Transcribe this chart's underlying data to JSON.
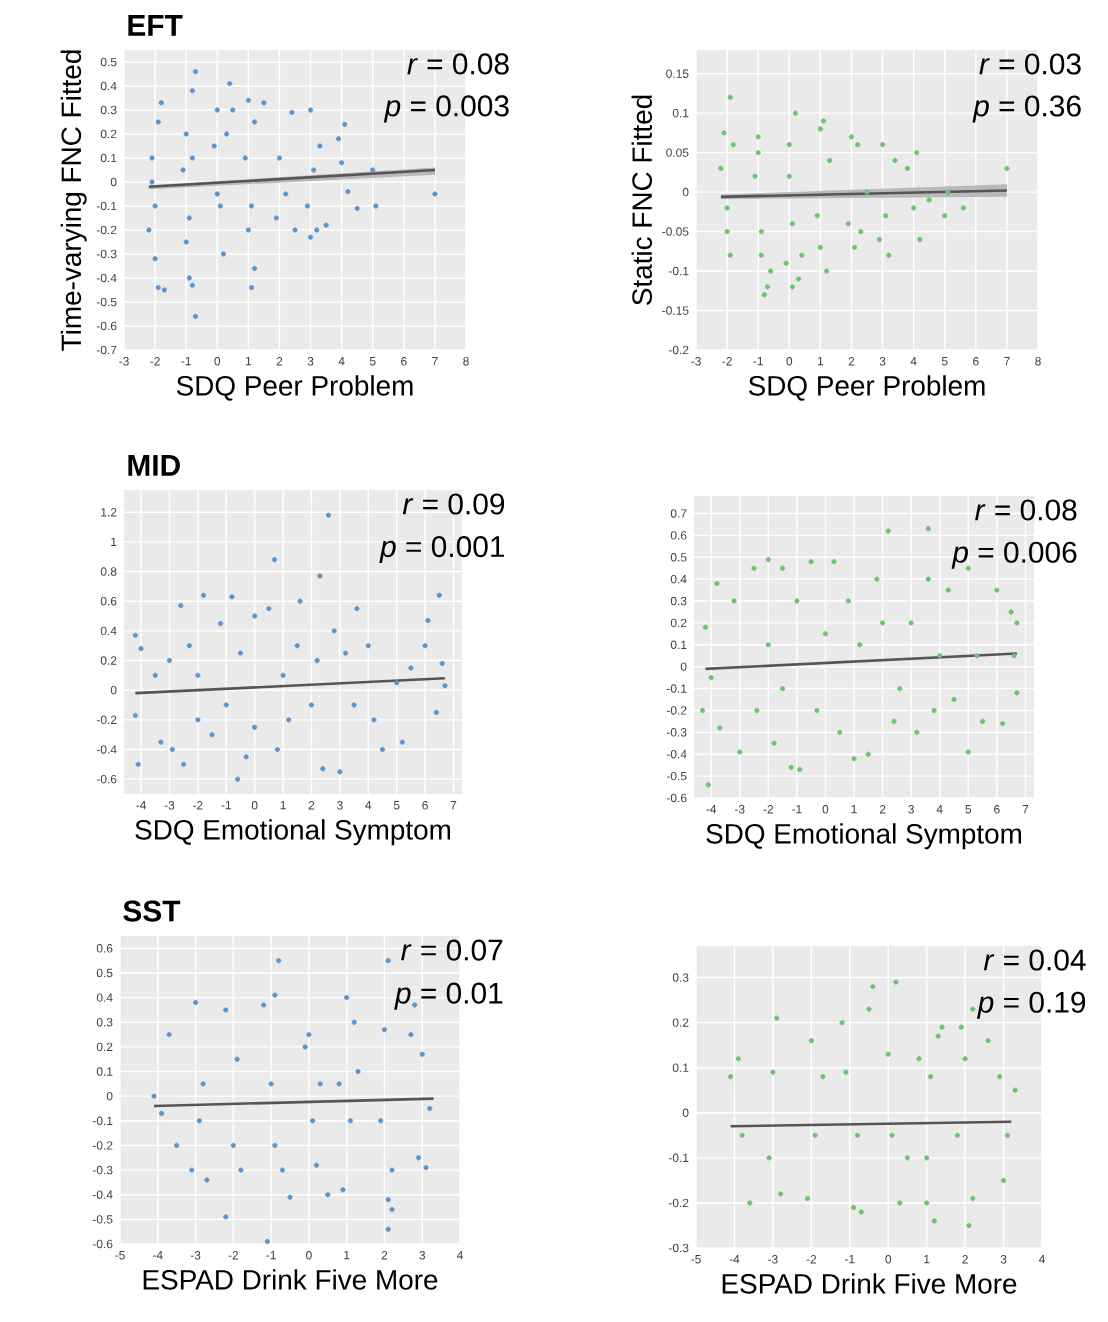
{
  "chart_data": [
    {
      "type": "scatter",
      "title": "EFT",
      "ylabel": "Time-varying FNC Fitted",
      "xlabel": "SDQ Peer Problem",
      "annotations": [
        "*r* = 0.08",
        "*p* = 0.003"
      ],
      "xlim": [
        -3,
        8
      ],
      "ylim": [
        -0.7,
        0.55
      ],
      "xticks": [
        -3,
        -2,
        -1,
        0,
        1,
        2,
        3,
        4,
        5,
        6,
        7,
        8
      ],
      "yticks": [
        -0.7,
        -0.6,
        -0.5,
        -0.4,
        -0.3,
        -0.2,
        -0.1,
        0,
        0.1,
        0.2,
        0.3,
        0.4,
        0.5
      ],
      "grid": true,
      "marker": "circle",
      "series": [
        {
          "color": "#5b95cf",
          "x": [
            -2.1,
            -2.0,
            -1.9,
            -2.2,
            -1.8,
            -2.0,
            -1.9,
            -1.7,
            -2.1,
            -1.0,
            -0.9,
            -1.1,
            -0.8,
            -0.7,
            -1.0,
            -0.9,
            -0.8,
            -0.7,
            -0.8,
            0.0,
            0.1,
            -0.1,
            0.2,
            0.4,
            0.3,
            0.0,
            0.5,
            1.0,
            1.1,
            0.9,
            1.2,
            1.2,
            1.1,
            1.0,
            1.5,
            2.0,
            2.2,
            1.9,
            2.4,
            2.5,
            3.0,
            3.1,
            2.9,
            3.2,
            3.0,
            3.3,
            3.5,
            3.9,
            4.0,
            4.1,
            4.2,
            4.5,
            5.0,
            5.1,
            7.0
          ],
          "values": [
            0.1,
            -0.1,
            0.25,
            -0.2,
            0.33,
            -0.32,
            -0.44,
            -0.45,
            0.0,
            0.2,
            -0.15,
            0.05,
            0.38,
            0.46,
            -0.25,
            -0.4,
            -0.43,
            -0.56,
            0.1,
            0.3,
            -0.1,
            0.15,
            -0.3,
            0.41,
            0.2,
            -0.05,
            0.3,
            0.34,
            -0.1,
            0.1,
            0.25,
            -0.36,
            -0.44,
            -0.2,
            0.33,
            0.1,
            -0.05,
            -0.15,
            0.29,
            -0.2,
            0.3,
            0.05,
            -0.1,
            -0.2,
            -0.23,
            0.15,
            -0.18,
            0.18,
            0.08,
            0.24,
            -0.04,
            -0.11,
            0.05,
            -0.1,
            -0.05
          ]
        },
        {
          "type": "line",
          "marker": "none",
          "color": "#555555",
          "x": [
            -2.2,
            7
          ],
          "values": [
            -0.02,
            0.05
          ],
          "lower": [
            -0.03,
            0.03
          ],
          "upper": [
            -0.014,
            0.06
          ]
        }
      ]
    },
    {
      "type": "scatter",
      "ylabel": "Static FNC Fitted",
      "xlabel": "SDQ Peer Problem",
      "annotations": [
        "*r* = 0.03",
        "*p* = 0.36"
      ],
      "xlim": [
        -3,
        8
      ],
      "ylim": [
        -0.2,
        0.18
      ],
      "xticks": [
        -3,
        -2,
        -1,
        0,
        1,
        2,
        3,
        4,
        5,
        6,
        7,
        8
      ],
      "yticks": [
        -0.2,
        -0.15,
        -0.1,
        -0.05,
        0,
        0.05,
        0.1,
        0.15
      ],
      "grid": true,
      "marker": "circle",
      "series": [
        {
          "color": "#6cc46c",
          "x": [
            -2.1,
            -1.9,
            -2.0,
            -2.2,
            -1.9,
            -1.8,
            -2.0,
            -1.0,
            -0.9,
            -1.1,
            -0.8,
            -0.7,
            -0.6,
            -1.0,
            -0.9,
            0.0,
            0.1,
            0.2,
            -0.1,
            0.1,
            0.3,
            0.0,
            0.4,
            1.0,
            1.1,
            0.9,
            1.2,
            1.0,
            1.3,
            2.0,
            2.2,
            1.9,
            2.1,
            2.5,
            2.3,
            3.0,
            3.1,
            2.9,
            3.2,
            3.4,
            3.8,
            4.1,
            4.0,
            4.2,
            4.5,
            5.0,
            5.1,
            5.6,
            7.0
          ],
          "values": [
            0.075,
            0.12,
            -0.05,
            0.03,
            -0.08,
            0.06,
            -0.02,
            0.07,
            -0.05,
            0.02,
            -0.13,
            -0.12,
            -0.1,
            0.05,
            -0.08,
            0.06,
            -0.04,
            0.1,
            -0.09,
            -0.12,
            -0.11,
            0.02,
            -0.08,
            0.08,
            0.09,
            -0.03,
            -0.1,
            -0.07,
            0.04,
            0.07,
            0.06,
            -0.04,
            -0.07,
            0.0,
            -0.05,
            0.06,
            -0.03,
            -0.06,
            -0.08,
            0.04,
            0.03,
            0.05,
            -0.02,
            -0.06,
            -0.01,
            -0.03,
            0.0,
            -0.02,
            0.03
          ]
        },
        {
          "type": "line",
          "marker": "none",
          "color": "#555555",
          "x": [
            -2.2,
            7
          ],
          "values": [
            -0.006,
            0.002
          ],
          "lower": [
            -0.009,
            -0.006
          ],
          "upper": [
            -0.003,
            0.01
          ]
        }
      ]
    },
    {
      "type": "scatter",
      "title": "MID",
      "xlabel": "SDQ Emotional Symptom",
      "annotations": [
        "*r* = 0.09",
        "*p* = 0.001"
      ],
      "xlim": [
        -4.6,
        7.3
      ],
      "ylim": [
        -0.7,
        1.35
      ],
      "xticks": [
        -4,
        -3,
        -2,
        -1,
        0,
        1,
        2,
        3,
        4,
        5,
        6,
        7
      ],
      "yticks": [
        -0.6,
        -0.4,
        -0.2,
        0,
        0.2,
        0.4,
        0.6,
        0.8,
        1,
        1.2
      ],
      "grid": true,
      "marker": "circle",
      "series": [
        {
          "color": "#5b95cf",
          "x": [
            -4.2,
            -4.1,
            -4.0,
            -4.2,
            -3.5,
            -3.3,
            -3.0,
            -2.9,
            -2.6,
            -2.5,
            -2.3,
            -2.0,
            -2.0,
            -1.8,
            -1.5,
            -1.2,
            -1.0,
            -0.8,
            -0.6,
            -0.5,
            -0.3,
            0.0,
            0.0,
            0.5,
            0.7,
            0.8,
            1.0,
            1.2,
            1.5,
            1.6,
            2.0,
            2.2,
            2.3,
            2.4,
            2.6,
            2.8,
            3.0,
            3.2,
            3.5,
            3.6,
            4.0,
            4.2,
            4.5,
            5.0,
            5.2,
            5.5,
            6.0,
            6.1,
            6.4,
            6.5,
            6.7,
            6.6
          ],
          "values": [
            0.37,
            -0.5,
            0.28,
            -0.17,
            0.1,
            -0.35,
            0.2,
            -0.4,
            0.57,
            -0.5,
            0.3,
            0.1,
            -0.2,
            0.64,
            -0.3,
            0.45,
            -0.1,
            0.63,
            -0.6,
            0.25,
            -0.45,
            0.5,
            -0.25,
            0.55,
            0.88,
            -0.4,
            0.1,
            -0.2,
            0.3,
            0.6,
            -0.1,
            0.2,
            0.77,
            -0.53,
            1.18,
            0.4,
            -0.55,
            0.25,
            -0.1,
            0.55,
            0.3,
            -0.2,
            -0.4,
            0.05,
            -0.35,
            0.15,
            0.3,
            0.47,
            -0.15,
            0.64,
            0.03,
            0.18
          ]
        },
        {
          "type": "line",
          "marker": "none",
          "color": "#555555",
          "x": [
            -4.2,
            6.7
          ],
          "values": [
            -0.02,
            0.08
          ]
        }
      ]
    },
    {
      "type": "scatter",
      "xlabel": "SDQ Emotional Symptom",
      "annotations": [
        "*r* = 0.08",
        "*p* = 0.006"
      ],
      "xlim": [
        -4.6,
        7.3
      ],
      "ylim": [
        -0.6,
        0.78
      ],
      "xticks": [
        -4,
        -3,
        -2,
        -1,
        0,
        1,
        2,
        3,
        4,
        5,
        6,
        7
      ],
      "yticks": [
        -0.6,
        -0.5,
        -0.4,
        -0.3,
        -0.2,
        -0.1,
        0,
        0.1,
        0.2,
        0.3,
        0.4,
        0.5,
        0.6,
        0.7
      ],
      "grid": true,
      "marker": "circle",
      "series": [
        {
          "color": "#6cc46c",
          "x": [
            -4.2,
            -4.1,
            -4.0,
            -4.3,
            -3.8,
            -3.7,
            -3.2,
            -3.0,
            -2.5,
            -2.4,
            -2.0,
            -2.0,
            -1.8,
            -1.5,
            -1.5,
            -1.2,
            -1.0,
            -0.9,
            -0.5,
            -0.3,
            0.0,
            0.3,
            0.5,
            0.8,
            1.0,
            1.2,
            1.5,
            1.8,
            2.0,
            2.2,
            2.4,
            2.6,
            3.0,
            3.2,
            3.6,
            3.6,
            3.8,
            4.0,
            4.3,
            4.5,
            5.0,
            5.0,
            5.3,
            5.5,
            6.0,
            6.2,
            6.5,
            6.7,
            6.7,
            6.6
          ],
          "values": [
            0.18,
            -0.54,
            -0.05,
            -0.2,
            0.38,
            -0.28,
            0.3,
            -0.39,
            0.45,
            -0.2,
            0.49,
            0.1,
            -0.35,
            0.45,
            -0.1,
            -0.46,
            0.3,
            -0.47,
            0.48,
            -0.2,
            0.15,
            0.48,
            -0.3,
            0.3,
            -0.42,
            0.1,
            -0.4,
            0.4,
            0.2,
            0.62,
            -0.25,
            -0.1,
            0.2,
            -0.3,
            0.63,
            0.4,
            -0.2,
            0.05,
            0.35,
            -0.15,
            0.45,
            -0.39,
            0.05,
            -0.25,
            0.35,
            -0.26,
            0.25,
            0.2,
            -0.12,
            0.05
          ]
        },
        {
          "type": "line",
          "marker": "none",
          "color": "#555555",
          "x": [
            -4.2,
            6.7
          ],
          "values": [
            -0.01,
            0.06
          ]
        }
      ]
    },
    {
      "type": "scatter",
      "title": "SST",
      "xlabel": "ESPAD Drink Five More",
      "annotations": [
        "*r* = 0.07",
        "*p* = 0.01"
      ],
      "xlim": [
        -5,
        4
      ],
      "ylim": [
        -0.6,
        0.65
      ],
      "xticks": [
        -5,
        -4,
        -3,
        -2,
        -1,
        0,
        1,
        2,
        3,
        4
      ],
      "yticks": [
        -0.6,
        -0.5,
        -0.4,
        -0.3,
        -0.2,
        -0.1,
        0,
        0.1,
        0.2,
        0.3,
        0.4,
        0.5,
        0.6
      ],
      "grid": true,
      "marker": "circle",
      "series": [
        {
          "color": "#5b95cf",
          "x": [
            -4.1,
            -3.9,
            -3.7,
            -3.5,
            -3.0,
            -2.9,
            -3.1,
            -2.8,
            -2.7,
            -2.2,
            -2.0,
            -1.9,
            -2.2,
            -1.8,
            -1.2,
            -1.0,
            -0.9,
            -0.8,
            -0.9,
            -1.1,
            -0.5,
            -0.7,
            0.0,
            0.1,
            -0.1,
            0.2,
            0.3,
            0.5,
            1.0,
            0.9,
            1.2,
            1.1,
            1.3,
            0.8,
            2.0,
            2.1,
            1.9,
            2.2,
            2.1,
            2.2,
            2.1,
            2.7,
            2.8,
            3.0,
            3.2,
            3.1,
            2.9
          ],
          "values": [
            0.0,
            -0.07,
            0.25,
            -0.2,
            0.38,
            -0.1,
            -0.3,
            0.05,
            -0.34,
            0.35,
            -0.2,
            0.15,
            -0.49,
            -0.3,
            0.37,
            0.05,
            -0.2,
            0.55,
            0.41,
            -0.59,
            -0.41,
            -0.3,
            0.25,
            -0.1,
            0.2,
            -0.28,
            0.05,
            -0.4,
            0.4,
            -0.38,
            0.3,
            -0.1,
            0.1,
            0.05,
            0.27,
            0.55,
            -0.1,
            -0.3,
            -0.42,
            -0.46,
            -0.54,
            0.25,
            0.37,
            0.17,
            -0.05,
            -0.29,
            -0.25
          ]
        },
        {
          "type": "line",
          "marker": "none",
          "color": "#555555",
          "x": [
            -4.1,
            3.3
          ],
          "values": [
            -0.04,
            -0.01
          ]
        }
      ]
    },
    {
      "type": "scatter",
      "xlabel": "ESPAD Drink Five More",
      "annotations": [
        "*r* = 0.04",
        "*p* = 0.19"
      ],
      "xlim": [
        -5,
        4
      ],
      "ylim": [
        -0.3,
        0.37
      ],
      "xticks": [
        -5,
        -4,
        -3,
        -2,
        -1,
        0,
        1,
        2,
        3,
        4
      ],
      "yticks": [
        -0.3,
        -0.2,
        -0.1,
        0,
        0.1,
        0.2,
        0.3
      ],
      "grid": true,
      "marker": "circle",
      "series": [
        {
          "color": "#6cc46c",
          "x": [
            -4.1,
            -3.9,
            -3.8,
            -3.6,
            -3.0,
            -2.9,
            -3.1,
            -2.8,
            -2.0,
            -1.9,
            -2.1,
            -1.7,
            -1.2,
            -1.1,
            -0.9,
            -0.8,
            -0.7,
            -0.5,
            -0.4,
            0.0,
            0.1,
            0.2,
            0.3,
            0.5,
            0.8,
            1.0,
            1.1,
            1.2,
            1.4,
            1.3,
            1.0,
            2.0,
            1.9,
            2.2,
            2.1,
            2.2,
            1.8,
            2.6,
            2.9,
            3.0,
            3.1,
            3.3
          ],
          "values": [
            0.08,
            0.12,
            -0.05,
            -0.2,
            0.09,
            0.21,
            -0.1,
            -0.18,
            0.16,
            -0.05,
            -0.19,
            0.08,
            0.2,
            0.09,
            -0.21,
            -0.05,
            -0.22,
            0.23,
            0.28,
            0.13,
            -0.05,
            0.29,
            -0.2,
            -0.1,
            0.12,
            -0.2,
            0.08,
            -0.24,
            0.19,
            0.17,
            -0.1,
            0.12,
            0.19,
            0.23,
            -0.25,
            -0.19,
            -0.05,
            0.16,
            0.08,
            -0.15,
            -0.05,
            0.05
          ]
        },
        {
          "type": "line",
          "marker": "none",
          "color": "#555555",
          "x": [
            -4.1,
            3.2
          ],
          "values": [
            -0.03,
            -0.02
          ]
        }
      ]
    }
  ]
}
